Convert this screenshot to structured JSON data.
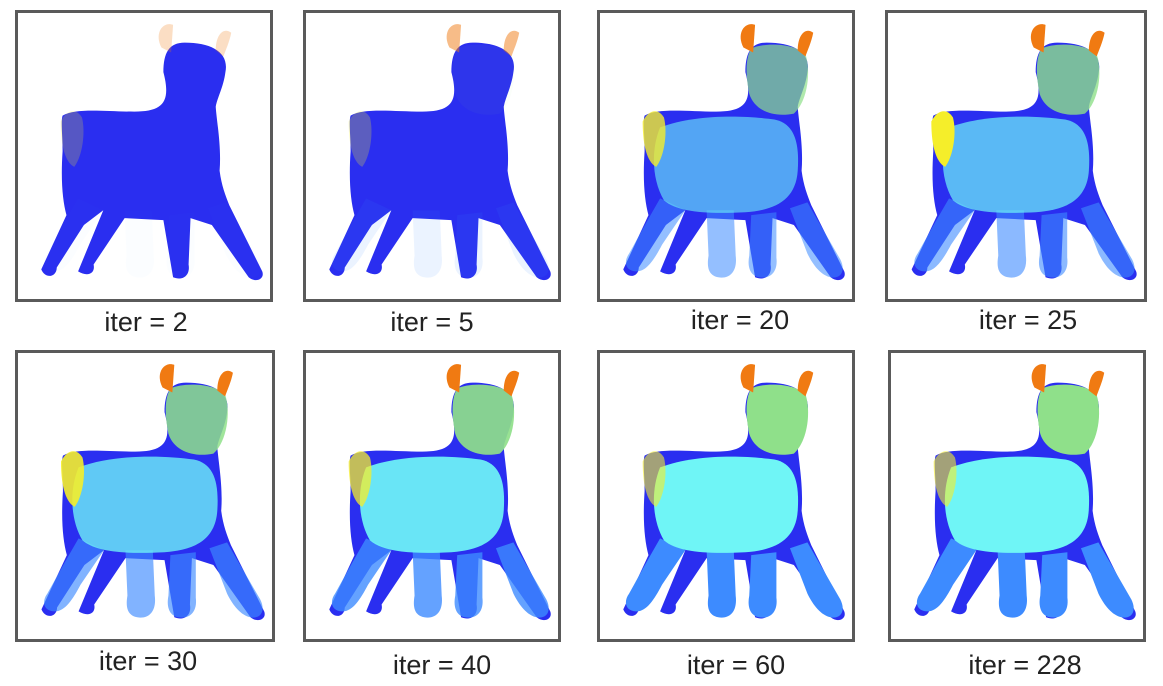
{
  "colors": {
    "body_dark_blue": "#2a2ef0",
    "leg_blue": "#3d8bff",
    "torso_cyan": "#6ff5f6",
    "head_green": "#8fe08a",
    "ear_orange": "#f07a12",
    "tail_yellow": "#f5ee2a",
    "frame_gray": "#5a5a5a"
  },
  "panels": [
    {
      "caption": "iter = 2",
      "seg": {
        "torso": 0.0,
        "head": 0.0,
        "legs": 0.02,
        "ears": 0.15,
        "tail": 0.02,
        "torsoSolid": false,
        "headSolid": false
      }
    },
    {
      "caption": "iter = 5",
      "seg": {
        "torso": 0.0,
        "head": 0.04,
        "legs": 0.1,
        "ears": 0.4,
        "tail": 0.05,
        "torsoSolid": false,
        "headSolid": false
      }
    },
    {
      "caption": "iter = 20",
      "seg": {
        "torso": 0.6,
        "head": 0.7,
        "legs": 0.55,
        "ears": 1.0,
        "tail": 0.6,
        "torsoSolid": false,
        "headSolid": false
      }
    },
    {
      "caption": "iter = 25",
      "seg": {
        "torso": 0.7,
        "head": 0.8,
        "legs": 0.6,
        "ears": 1.0,
        "tail": 0.8,
        "torsoSolid": false,
        "headSolid": false
      }
    },
    {
      "caption": "iter = 30",
      "seg": {
        "torso": 0.78,
        "head": 0.85,
        "legs": 0.65,
        "ears": 1.0,
        "tail": 0.7,
        "torsoSolid": false,
        "headSolid": false
      }
    },
    {
      "caption": "iter = 40",
      "seg": {
        "torso": 0.92,
        "head": 0.92,
        "legs": 0.8,
        "ears": 1.0,
        "tail": 0.55,
        "torsoSolid": false,
        "headSolid": false
      }
    },
    {
      "caption": "iter = 60",
      "seg": {
        "torso": 1.0,
        "head": 1.0,
        "legs": 1.0,
        "ears": 1.0,
        "tail": 0.4,
        "torsoSolid": true,
        "headSolid": true
      }
    },
    {
      "caption": "iter = 228",
      "seg": {
        "torso": 1.0,
        "head": 1.0,
        "legs": 1.0,
        "ears": 1.0,
        "tail": 0.4,
        "torsoSolid": true,
        "headSolid": true
      }
    }
  ]
}
